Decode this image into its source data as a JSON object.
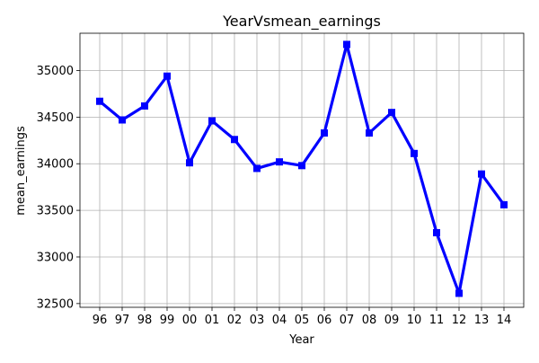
{
  "chart_data": {
    "type": "line",
    "title": "YearVsmean_earnings",
    "xlabel": "Year",
    "ylabel": "mean_earnings",
    "categories": [
      "96",
      "97",
      "98",
      "99",
      "00",
      "01",
      "02",
      "03",
      "04",
      "05",
      "06",
      "07",
      "08",
      "09",
      "10",
      "11",
      "12",
      "13",
      "14"
    ],
    "series": [
      {
        "values": [
          34670,
          34470,
          34620,
          34940,
          34010,
          34460,
          34260,
          33950,
          34020,
          33980,
          34330,
          35280,
          34330,
          34550,
          34110,
          33260,
          32610,
          33890,
          33560
        ]
      }
    ],
    "ylim": [
      32460,
      35400
    ],
    "yticks": [
      32500,
      33000,
      33500,
      34000,
      34500,
      35000
    ],
    "grid": true,
    "marker": "square",
    "line_color": "#0000ff"
  }
}
